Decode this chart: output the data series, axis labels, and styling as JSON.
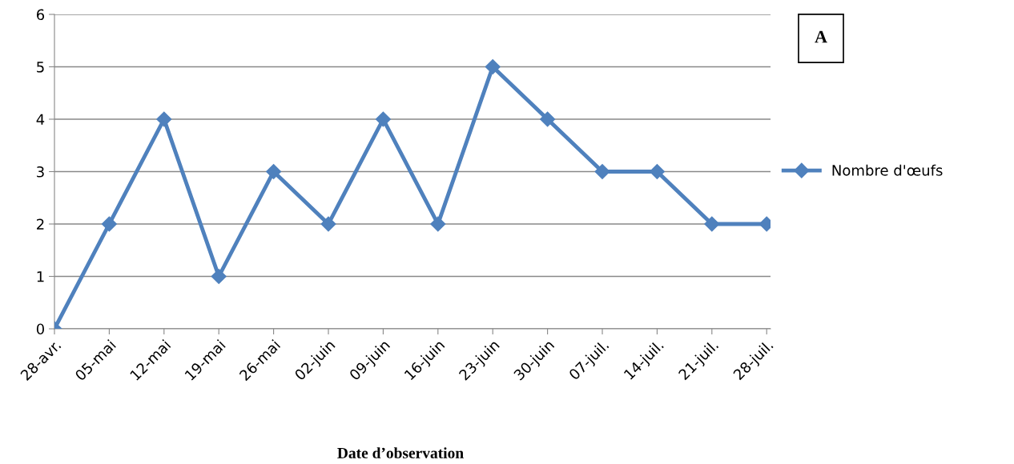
{
  "chart_data": {
    "type": "line",
    "xlabel": "Date d’observation",
    "categories": [
      "28-avr.",
      "05-mai",
      "12-mai",
      "19-mai",
      "26-mai",
      "02-juin",
      "09-juin",
      "16-juin",
      "23-juin",
      "30-juin",
      "07-juil.",
      "14-juil.",
      "21-juil.",
      "28-juil."
    ],
    "series": [
      {
        "name": "Nombre d'œufs",
        "color": "#4f81bd",
        "values": [
          0,
          2,
          4,
          1,
          3,
          2,
          4,
          2,
          5,
          4,
          3,
          3,
          2,
          2
        ]
      }
    ],
    "ylim": [
      0,
      6
    ],
    "yticks": [
      0,
      1,
      2,
      3,
      4,
      5,
      6
    ],
    "grid": "y",
    "legend": "right",
    "marker": "diamond",
    "line_style": "solid",
    "annotations": [
      "A"
    ]
  }
}
